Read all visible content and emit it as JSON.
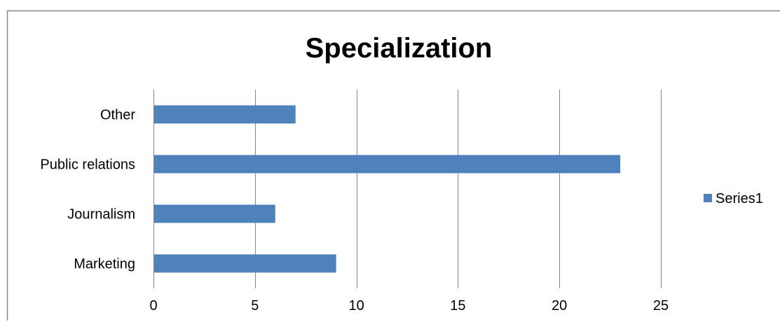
{
  "chart_data": {
    "type": "bar",
    "orientation": "horizontal",
    "title": "Specialization",
    "categories": [
      "Marketing",
      "Journalism",
      "Public relations",
      "Other"
    ],
    "series": [
      {
        "name": "Series1",
        "values": [
          9,
          6,
          23,
          7
        ],
        "color": "#4F81BD"
      }
    ],
    "xlim": [
      0,
      25
    ],
    "x_ticks": [
      0,
      5,
      10,
      15,
      20,
      25
    ],
    "x_tick_labels": [
      "0",
      "5",
      "10",
      "15",
      "20",
      "25"
    ],
    "grid": "vertical",
    "legend": "right"
  }
}
